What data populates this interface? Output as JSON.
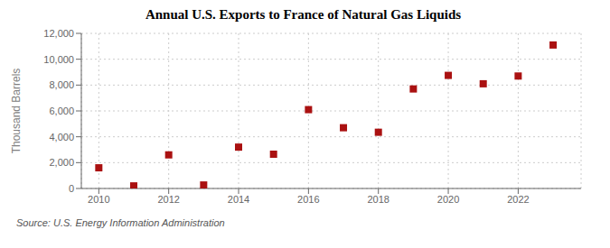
{
  "chart_data": {
    "type": "scatter",
    "title": "Annual U.S. Exports to France of Natural Gas Liquids",
    "ylabel": "Thousand Barrels",
    "source": "Source: U.S. Energy Information Administration",
    "x": [
      2010,
      2011,
      2012,
      2013,
      2014,
      2015,
      2016,
      2017,
      2018,
      2019,
      2020,
      2021,
      2022,
      2023
    ],
    "values": [
      1600,
      200,
      2600,
      270,
      3200,
      2650,
      6100,
      4700,
      4350,
      7700,
      8750,
      8100,
      8700,
      11100
    ],
    "color": "#aa1111",
    "marker": "square",
    "xlim": [
      2009.5,
      2023.8
    ],
    "xticks": [
      2010,
      2012,
      2014,
      2016,
      2018,
      2020,
      2022
    ],
    "ylim": [
      0,
      12000
    ],
    "yticks": [
      0,
      {
        "value": 2000,
        "label": "2,000"
      },
      {
        "value": 4000,
        "label": "4,000"
      },
      {
        "value": 6000,
        "label": "6,000"
      },
      {
        "value": 8000,
        "label": "8,000"
      },
      {
        "value": 10000,
        "label": "10,000"
      },
      {
        "value": 12000,
        "label": "12,000"
      }
    ],
    "grid": true
  }
}
